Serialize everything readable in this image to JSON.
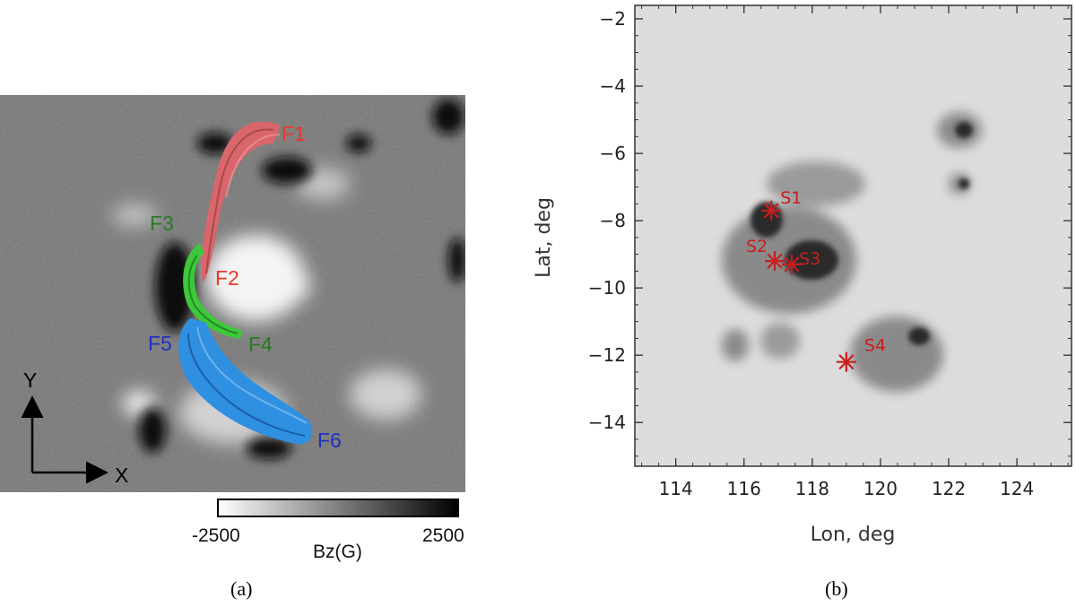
{
  "panel_a": {
    "caption": "(a)",
    "colors": {
      "red": "#e8392b",
      "green": "#2a7a25",
      "blue": "#1f2fbf",
      "red_tube": "#d8666a",
      "green_tube": "#3cc83a",
      "blue_tube": "#2f8fe0"
    },
    "flux_ropes": [
      {
        "id": "F1",
        "color_key": "red"
      },
      {
        "id": "F2",
        "color_key": "red"
      },
      {
        "id": "F3",
        "color_key": "green"
      },
      {
        "id": "F4",
        "color_key": "green"
      },
      {
        "id": "F5",
        "color_key": "blue"
      },
      {
        "id": "F6",
        "color_key": "blue"
      }
    ],
    "axes_indicator": {
      "y_label": "Y",
      "x_label": "X"
    },
    "colorbar": {
      "min_label": "-2500",
      "max_label": "2500",
      "title": "Bz(G)"
    }
  },
  "panel_b": {
    "caption": "(b)",
    "chart_data": {
      "type": "scatter",
      "xlabel": "Lon, deg",
      "ylabel": "Lat, deg",
      "xlim": [
        112.8,
        125.6
      ],
      "ylim": [
        -15.3,
        -1.6
      ],
      "xticks": [
        114,
        116,
        118,
        120,
        122,
        124
      ],
      "yticks": [
        -2,
        -4,
        -6,
        -8,
        -10,
        -12,
        -14
      ],
      "tick_labels_x": [
        "114",
        "116",
        "118",
        "120",
        "122",
        "124"
      ],
      "tick_labels_y": [
        "−2",
        "−4",
        "−6",
        "−8",
        "−10",
        "−12",
        "−14"
      ],
      "marker_color": "#c81e1e",
      "points": [
        {
          "name": "S1",
          "x": 116.8,
          "y": -7.7
        },
        {
          "name": "S2",
          "x": 116.9,
          "y": -9.2
        },
        {
          "name": "S3",
          "x": 117.4,
          "y": -9.3
        },
        {
          "name": "S4",
          "x": 119.0,
          "y": -12.2
        }
      ]
    }
  }
}
